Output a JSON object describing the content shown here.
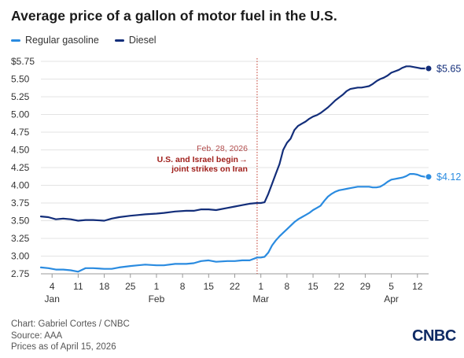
{
  "title": "Average price of a gallon of motor fuel in the U.S.",
  "colors": {
    "regular": "#2a8be0",
    "diesel": "#132e7a",
    "annotation": "#c0392b"
  },
  "footer": {
    "credit": "Chart: Gabriel Cortes / CNBC",
    "source": "Source: AAA",
    "asof": "Prices as of April 15, 2026"
  },
  "brand": "CNBC",
  "chart_data": {
    "type": "line",
    "title": "Average price of a gallon of motor fuel in the U.S.",
    "legend": "top-left",
    "grid": "horizontal",
    "ylim": [
      2.75,
      5.75
    ],
    "yticks": [
      "$5.75",
      "5.50",
      "5.25",
      "5.00",
      "4.75",
      "4.50",
      "4.25",
      "4.00",
      "3.75",
      "3.50",
      "3.25",
      "3.00",
      "2.75"
    ],
    "xlim": [
      "2026-01-01",
      "2026-04-15"
    ],
    "xticks": [
      {
        "date": "2026-01-04",
        "label": "4",
        "month": "Jan"
      },
      {
        "date": "2026-01-11",
        "label": "11",
        "month": ""
      },
      {
        "date": "2026-01-18",
        "label": "18",
        "month": ""
      },
      {
        "date": "2026-01-25",
        "label": "25",
        "month": ""
      },
      {
        "date": "2026-02-01",
        "label": "1",
        "month": "Feb"
      },
      {
        "date": "2026-02-08",
        "label": "8",
        "month": ""
      },
      {
        "date": "2026-02-15",
        "label": "15",
        "month": ""
      },
      {
        "date": "2026-02-22",
        "label": "22",
        "month": ""
      },
      {
        "date": "2026-03-01",
        "label": "1",
        "month": "Mar"
      },
      {
        "date": "2026-03-08",
        "label": "8",
        "month": ""
      },
      {
        "date": "2026-03-15",
        "label": "15",
        "month": ""
      },
      {
        "date": "2026-03-22",
        "label": "22",
        "month": ""
      },
      {
        "date": "2026-03-29",
        "label": "29",
        "month": ""
      },
      {
        "date": "2026-04-05",
        "label": "5",
        "month": "Apr"
      },
      {
        "date": "2026-04-12",
        "label": "12",
        "month": ""
      }
    ],
    "annotation": {
      "date": "2026-02-28",
      "label_date": "Feb. 28, 2026",
      "line1": "U.S. and Israel begin",
      "line2": "joint strikes on Iran",
      "arrow": "→"
    },
    "series": [
      {
        "name": "Regular gasoline",
        "color": "#2a8be0",
        "end_label": "$4.12",
        "x": [
          "2026-01-01",
          "2026-01-03",
          "2026-01-05",
          "2026-01-07",
          "2026-01-09",
          "2026-01-11",
          "2026-01-13",
          "2026-01-15",
          "2026-01-18",
          "2026-01-20",
          "2026-01-22",
          "2026-01-25",
          "2026-01-27",
          "2026-01-29",
          "2026-02-01",
          "2026-02-03",
          "2026-02-06",
          "2026-02-09",
          "2026-02-11",
          "2026-02-13",
          "2026-02-15",
          "2026-02-17",
          "2026-02-20",
          "2026-02-22",
          "2026-02-24",
          "2026-02-26",
          "2026-02-28",
          "2026-03-01",
          "2026-03-02",
          "2026-03-03",
          "2026-03-04",
          "2026-03-05",
          "2026-03-06",
          "2026-03-07",
          "2026-03-08",
          "2026-03-09",
          "2026-03-10",
          "2026-03-11",
          "2026-03-12",
          "2026-03-13",
          "2026-03-14",
          "2026-03-15",
          "2026-03-16",
          "2026-03-17",
          "2026-03-18",
          "2026-03-19",
          "2026-03-20",
          "2026-03-21",
          "2026-03-22",
          "2026-03-23",
          "2026-03-24",
          "2026-03-25",
          "2026-03-26",
          "2026-03-27",
          "2026-03-28",
          "2026-03-29",
          "2026-03-30",
          "2026-03-31",
          "2026-04-01",
          "2026-04-02",
          "2026-04-03",
          "2026-04-04",
          "2026-04-05",
          "2026-04-06",
          "2026-04-07",
          "2026-04-08",
          "2026-04-09",
          "2026-04-10",
          "2026-04-11",
          "2026-04-12",
          "2026-04-13",
          "2026-04-14",
          "2026-04-15"
        ],
        "values": [
          2.84,
          2.83,
          2.81,
          2.81,
          2.8,
          2.78,
          2.83,
          2.83,
          2.82,
          2.82,
          2.84,
          2.86,
          2.87,
          2.88,
          2.87,
          2.87,
          2.89,
          2.89,
          2.9,
          2.93,
          2.94,
          2.92,
          2.93,
          2.93,
          2.94,
          2.94,
          2.98,
          2.98,
          2.99,
          3.05,
          3.15,
          3.22,
          3.28,
          3.33,
          3.38,
          3.43,
          3.48,
          3.52,
          3.55,
          3.58,
          3.61,
          3.65,
          3.68,
          3.71,
          3.78,
          3.84,
          3.88,
          3.91,
          3.93,
          3.94,
          3.95,
          3.96,
          3.97,
          3.98,
          3.98,
          3.98,
          3.98,
          3.97,
          3.97,
          3.98,
          4.01,
          4.05,
          4.08,
          4.09,
          4.1,
          4.11,
          4.13,
          4.16,
          4.16,
          4.15,
          4.13,
          4.12,
          4.12
        ]
      },
      {
        "name": "Diesel",
        "color": "#132e7a",
        "end_label": "$5.65",
        "x": [
          "2026-01-01",
          "2026-01-03",
          "2026-01-05",
          "2026-01-07",
          "2026-01-09",
          "2026-01-11",
          "2026-01-13",
          "2026-01-15",
          "2026-01-18",
          "2026-01-20",
          "2026-01-22",
          "2026-01-25",
          "2026-01-27",
          "2026-01-29",
          "2026-02-01",
          "2026-02-03",
          "2026-02-06",
          "2026-02-09",
          "2026-02-11",
          "2026-02-13",
          "2026-02-15",
          "2026-02-17",
          "2026-02-20",
          "2026-02-22",
          "2026-02-24",
          "2026-02-26",
          "2026-02-28",
          "2026-03-01",
          "2026-03-02",
          "2026-03-03",
          "2026-03-04",
          "2026-03-05",
          "2026-03-06",
          "2026-03-07",
          "2026-03-08",
          "2026-03-09",
          "2026-03-10",
          "2026-03-11",
          "2026-03-12",
          "2026-03-13",
          "2026-03-14",
          "2026-03-15",
          "2026-03-16",
          "2026-03-17",
          "2026-03-18",
          "2026-03-19",
          "2026-03-20",
          "2026-03-21",
          "2026-03-22",
          "2026-03-23",
          "2026-03-24",
          "2026-03-25",
          "2026-03-26",
          "2026-03-27",
          "2026-03-28",
          "2026-03-29",
          "2026-03-30",
          "2026-03-31",
          "2026-04-01",
          "2026-04-02",
          "2026-04-03",
          "2026-04-04",
          "2026-04-05",
          "2026-04-06",
          "2026-04-07",
          "2026-04-08",
          "2026-04-09",
          "2026-04-10",
          "2026-04-11",
          "2026-04-12",
          "2026-04-13",
          "2026-04-14",
          "2026-04-15"
        ],
        "values": [
          3.56,
          3.55,
          3.52,
          3.53,
          3.52,
          3.5,
          3.51,
          3.51,
          3.5,
          3.53,
          3.55,
          3.57,
          3.58,
          3.59,
          3.6,
          3.61,
          3.63,
          3.64,
          3.64,
          3.66,
          3.66,
          3.65,
          3.68,
          3.7,
          3.72,
          3.74,
          3.75,
          3.75,
          3.76,
          3.88,
          4.02,
          4.16,
          4.3,
          4.5,
          4.6,
          4.66,
          4.78,
          4.84,
          4.87,
          4.9,
          4.94,
          4.97,
          4.99,
          5.02,
          5.06,
          5.1,
          5.15,
          5.2,
          5.24,
          5.28,
          5.33,
          5.36,
          5.37,
          5.38,
          5.38,
          5.39,
          5.4,
          5.43,
          5.47,
          5.5,
          5.52,
          5.55,
          5.59,
          5.61,
          5.63,
          5.66,
          5.68,
          5.68,
          5.67,
          5.66,
          5.65,
          5.65,
          5.65
        ]
      }
    ]
  }
}
